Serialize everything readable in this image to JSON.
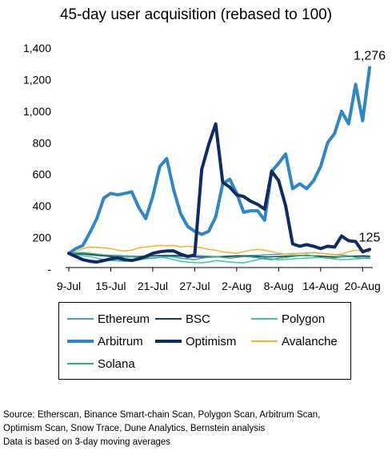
{
  "chart_data": {
    "type": "line",
    "title": "45-day user acquisition (rebased to 100)",
    "xlabel": "",
    "ylabel": "",
    "ylim": [
      0,
      1400
    ],
    "yticks": [
      "-",
      "200",
      "400",
      "600",
      "800",
      "1,000",
      "1,200",
      "1,400"
    ],
    "ytick_values": [
      0,
      200,
      400,
      600,
      800,
      1000,
      1200,
      1400
    ],
    "grid": false,
    "legend_position": "bottom",
    "x_tick_labels": [
      "9-Jul",
      "15-Jul",
      "21-Jul",
      "27-Jul",
      "2-Aug",
      "8-Aug",
      "14-Aug",
      "20-Aug"
    ],
    "x_tick_index": [
      0,
      6,
      12,
      18,
      24,
      30,
      36,
      42
    ],
    "x_count": 44,
    "series": [
      {
        "name": "Ethereum",
        "color": "#4a9bd4",
        "width": 1.5,
        "values": [
          100,
          98,
          96,
          94,
          92,
          90,
          88,
          86,
          84,
          82,
          80,
          80,
          82,
          84,
          86,
          88,
          90,
          88,
          86,
          84,
          82,
          80,
          78,
          80,
          82,
          84,
          86,
          88,
          90,
          92,
          94,
          96,
          98,
          100,
          102,
          104,
          100,
          96,
          92,
          88,
          84,
          82,
          80,
          78
        ]
      },
      {
        "name": "BSC",
        "color": "#1f3864",
        "width": 1.5,
        "values": [
          100,
          98,
          96,
          92,
          88,
          84,
          80,
          78,
          78,
          78,
          80,
          82,
          84,
          86,
          86,
          84,
          82,
          80,
          78,
          76,
          76,
          78,
          80,
          82,
          84,
          84,
          82,
          80,
          78,
          78,
          80,
          82,
          84,
          86,
          86,
          84,
          82,
          80,
          78,
          78,
          80,
          82,
          84,
          82
        ]
      },
      {
        "name": "Polygon",
        "color": "#3ac4a8",
        "width": 1.5,
        "values": [
          100,
          90,
          85,
          80,
          70,
          60,
          55,
          52,
          50,
          55,
          60,
          65,
          70,
          75,
          72,
          60,
          50,
          45,
          42,
          40,
          45,
          55,
          50,
          45,
          42,
          40,
          50,
          60,
          70,
          65,
          60,
          62,
          65,
          68,
          70,
          72,
          75,
          70,
          65,
          60,
          62,
          65,
          70,
          72
        ]
      },
      {
        "name": "Arbitrum",
        "color": "#2e86c9",
        "width": 4,
        "values": [
          100,
          130,
          150,
          230,
          320,
          450,
          480,
          470,
          480,
          490,
          390,
          320,
          460,
          650,
          700,
          500,
          350,
          270,
          240,
          220,
          240,
          330,
          540,
          570,
          480,
          360,
          370,
          370,
          310,
          620,
          670,
          730,
          510,
          540,
          510,
          560,
          650,
          800,
          860,
          1000,
          920,
          1170,
          940,
          1276
        ]
      },
      {
        "name": "Optimism",
        "color": "#0f2b66",
        "width": 4,
        "values": [
          100,
          80,
          60,
          50,
          45,
          55,
          65,
          70,
          60,
          55,
          65,
          80,
          100,
          110,
          115,
          115,
          95,
          80,
          90,
          630,
          790,
          920,
          550,
          520,
          470,
          460,
          430,
          410,
          380,
          620,
          560,
          400,
          160,
          145,
          155,
          145,
          130,
          145,
          140,
          210,
          180,
          175,
          110,
          125
        ]
      },
      {
        "name": "Avalanche",
        "color": "#f3b32a",
        "width": 1.5,
        "values": [
          100,
          110,
          130,
          140,
          138,
          135,
          130,
          120,
          115,
          120,
          135,
          140,
          145,
          150,
          148,
          150,
          140,
          145,
          140,
          135,
          125,
          120,
          110,
          105,
          100,
          110,
          120,
          125,
          120,
          110,
          100,
          95,
          95,
          100,
          100,
          105,
          100,
          95,
          90,
          95,
          110,
          120,
          115,
          110
        ]
      },
      {
        "name": "Solana",
        "color": "#2bb26c",
        "width": 1.5,
        "values": [
          100,
          102,
          105,
          100,
          95,
          90,
          88,
          85,
          80,
          78,
          75,
          72,
          70,
          75,
          80,
          78,
          70,
          65,
          60,
          70,
          75,
          80,
          75,
          70,
          75,
          80,
          78,
          72,
          65,
          60,
          70,
          75,
          80,
          85,
          90,
          82,
          75,
          70,
          72,
          78,
          82,
          75,
          70,
          68
        ]
      }
    ],
    "annotations": [
      {
        "series": "Arbitrum",
        "text": "1,276"
      },
      {
        "series": "Optimism",
        "text": "125"
      }
    ],
    "legend_layout": [
      [
        "Ethereum",
        "BSC",
        "Polygon"
      ],
      [
        "Arbitrum",
        "Optimism",
        "Avalanche"
      ],
      [
        "Solana"
      ]
    ]
  },
  "source_note": {
    "line1": "Source: Etherscan, Binance Smart-chain Scan, Polygon Scan, Arbitrum Scan,",
    "line2": "Optimism Scan, Snow Trace, Dune Analytics, Bernstein analysis",
    "line3": "Data is based on 3-day moving averages"
  }
}
